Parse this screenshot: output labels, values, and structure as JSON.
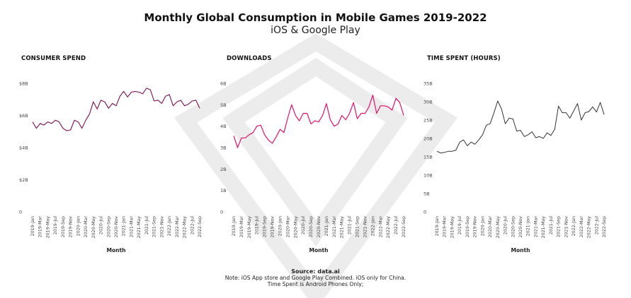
{
  "title": "Monthly Global Consumption in Mobile Games 2019-2022",
  "subtitle": "iOS & Google Play",
  "footer": {
    "source": "Source: data.ai",
    "note1": "Note: iOS App store and Google Play Combined. iOS only for China.",
    "note2": "Time Spent is Android Phones Only;"
  },
  "colors": {
    "consumer_spend": "#7a1050",
    "downloads": "#e0116e",
    "time_spent": "#333333",
    "axis_text": "#444444"
  },
  "chart_data": [
    {
      "type": "line",
      "title": "CONSUMER SPEND",
      "xlabel": "Month",
      "ylabel": "",
      "ylim": [
        0,
        8
      ],
      "yticks": [
        0,
        2,
        4,
        6,
        8
      ],
      "ytick_labels": [
        "0",
        "$2B",
        "$4B",
        "$6B",
        "$8B"
      ],
      "xtick_labels": [
        "2019-Jan",
        "2019-Mar",
        "2019-May",
        "2019-Jul",
        "2019-Sep",
        "2019-Nov",
        "2020-Jan",
        "2020-Mar",
        "2020-May",
        "2020-Jul",
        "2020-Sep",
        "2020-Nov",
        "2021-Jan",
        "2021-Mar",
        "2021-May",
        "2021-Jul",
        "2021-Sep",
        "2021-Nov",
        "2022-Jan",
        "2022-Mar",
        "2022-May",
        "2022-Jul",
        "2022-Sep"
      ],
      "x": [
        "2019-Jan",
        "2019-Feb",
        "2019-Mar",
        "2019-Apr",
        "2019-May",
        "2019-Jun",
        "2019-Jul",
        "2019-Aug",
        "2019-Sep",
        "2019-Oct",
        "2019-Nov",
        "2019-Dec",
        "2020-Jan",
        "2020-Feb",
        "2020-Mar",
        "2020-Apr",
        "2020-May",
        "2020-Jun",
        "2020-Jul",
        "2020-Aug",
        "2020-Sep",
        "2020-Oct",
        "2020-Nov",
        "2020-Dec",
        "2021-Jan",
        "2021-Feb",
        "2021-Mar",
        "2021-Apr",
        "2021-May",
        "2021-Jun",
        "2021-Jul",
        "2021-Aug",
        "2021-Sep",
        "2021-Oct",
        "2021-Nov",
        "2021-Dec",
        "2022-Jan",
        "2022-Feb",
        "2022-Mar",
        "2022-Apr",
        "2022-May",
        "2022-Jun",
        "2022-Jul",
        "2022-Aug",
        "2022-Sep"
      ],
      "values": [
        5.6,
        5.2,
        5.5,
        5.4,
        5.6,
        5.5,
        5.7,
        5.6,
        5.2,
        5.05,
        5.1,
        5.7,
        5.6,
        5.2,
        5.7,
        6.1,
        6.85,
        6.4,
        6.95,
        6.85,
        6.45,
        6.75,
        6.6,
        7.2,
        7.5,
        7.15,
        7.45,
        7.5,
        7.45,
        7.35,
        7.7,
        7.6,
        6.9,
        6.95,
        6.75,
        7.2,
        7.3,
        6.6,
        6.85,
        6.95,
        6.6,
        6.7,
        6.9,
        6.95,
        6.45
      ]
    },
    {
      "type": "line",
      "title": "DOWNLOADS",
      "xlabel": "Month",
      "ylabel": "",
      "ylim": [
        0,
        6
      ],
      "yticks": [
        0,
        1,
        2,
        3,
        4,
        5,
        6
      ],
      "ytick_labels": [
        "0",
        "1B",
        "2B",
        "3B",
        "4B",
        "5B",
        "6B"
      ],
      "xtick_labels": [
        "2019-Jan",
        "2019-Mar",
        "2019-May",
        "2019-Jul",
        "2019-Sep",
        "2019-Nov",
        "2020-Jan",
        "2020-Mar",
        "2020-May",
        "2020-Jul",
        "2020-Sep",
        "2020-Nov",
        "2021-Jan",
        "2021-Mar",
        "2021-May",
        "2021-Jul",
        "2021-Sep",
        "2021-Nov",
        "2022-Jan",
        "2022-Mar",
        "2022-May",
        "2022-Jul",
        "2022-Sep"
      ],
      "x": [
        "2019-Jan",
        "2019-Feb",
        "2019-Mar",
        "2019-Apr",
        "2019-May",
        "2019-Jun",
        "2019-Jul",
        "2019-Aug",
        "2019-Sep",
        "2019-Oct",
        "2019-Nov",
        "2019-Dec",
        "2020-Jan",
        "2020-Feb",
        "2020-Mar",
        "2020-Apr",
        "2020-May",
        "2020-Jun",
        "2020-Jul",
        "2020-Aug",
        "2020-Sep",
        "2020-Oct",
        "2020-Nov",
        "2020-Dec",
        "2021-Jan",
        "2021-Feb",
        "2021-Mar",
        "2021-Apr",
        "2021-May",
        "2021-Jun",
        "2021-Jul",
        "2021-Aug",
        "2021-Sep",
        "2021-Oct",
        "2021-Nov",
        "2021-Dec",
        "2022-Jan",
        "2022-Feb",
        "2022-Mar",
        "2022-Apr",
        "2022-May",
        "2022-Jun",
        "2022-Jul",
        "2022-Aug",
        "2022-Sep"
      ],
      "values": [
        3.55,
        3.0,
        3.45,
        3.45,
        3.6,
        3.7,
        4.0,
        4.05,
        3.6,
        3.35,
        3.2,
        3.5,
        3.85,
        3.7,
        4.4,
        5.0,
        4.5,
        4.25,
        4.6,
        4.6,
        4.1,
        4.25,
        4.2,
        4.5,
        5.05,
        4.3,
        4.0,
        4.1,
        4.5,
        4.3,
        4.6,
        5.1,
        4.35,
        4.6,
        4.6,
        4.9,
        5.45,
        4.6,
        4.95,
        4.95,
        4.9,
        4.75,
        5.3,
        5.1,
        4.5
      ]
    },
    {
      "type": "line",
      "title": "TIME SPENT (HOURS)",
      "xlabel": "Month",
      "ylabel": "",
      "ylim": [
        0,
        35
      ],
      "yticks": [
        0,
        5,
        10,
        15,
        20,
        25,
        30,
        35
      ],
      "ytick_labels": [
        "0",
        "5B",
        "10B",
        "15B",
        "20B",
        "25B",
        "30B",
        "35B"
      ],
      "xtick_labels": [
        "2019-Jan",
        "2019-Mar",
        "2019-May",
        "2019-Jul",
        "2019-Sep",
        "2019-Nov",
        "2020-Jan",
        "2020-Mar",
        "2020-May",
        "2020-Jul",
        "2020-Sep",
        "2020-Nov",
        "2021-Jan",
        "2021-Mar",
        "2021-May",
        "2021-Jul",
        "2021-Sep",
        "2021-Nov",
        "2022-Jan",
        "2022-Mar",
        "2022-May",
        "2022-Jul",
        "2022-Sep"
      ],
      "x": [
        "2019-Jan",
        "2019-Feb",
        "2019-Mar",
        "2019-Apr",
        "2019-May",
        "2019-Jun",
        "2019-Jul",
        "2019-Aug",
        "2019-Sep",
        "2019-Oct",
        "2019-Nov",
        "2019-Dec",
        "2020-Jan",
        "2020-Feb",
        "2020-Mar",
        "2020-Apr",
        "2020-May",
        "2020-Jun",
        "2020-Jul",
        "2020-Aug",
        "2020-Sep",
        "2020-Oct",
        "2020-Nov",
        "2020-Dec",
        "2021-Jan",
        "2021-Feb",
        "2021-Mar",
        "2021-Apr",
        "2021-May",
        "2021-Jun",
        "2021-Jul",
        "2021-Aug",
        "2021-Sep",
        "2021-Oct",
        "2021-Nov",
        "2021-Dec",
        "2022-Jan",
        "2022-Feb",
        "2022-Mar",
        "2022-Apr",
        "2022-May",
        "2022-Jun",
        "2022-Jul",
        "2022-Aug",
        "2022-Sep"
      ],
      "values": [
        16.5,
        16.0,
        16.2,
        16.5,
        16.5,
        16.8,
        19.0,
        19.6,
        18.0,
        19.0,
        18.4,
        19.6,
        21.0,
        23.6,
        24.0,
        27.0,
        30.2,
        28.0,
        24.0,
        25.5,
        25.3,
        22.0,
        22.2,
        20.5,
        21.0,
        21.8,
        20.2,
        20.5,
        20.0,
        21.5,
        20.8,
        22.5,
        28.8,
        27.0,
        27.0,
        25.5,
        27.5,
        29.5,
        25.0,
        27.0,
        27.3,
        28.6,
        27.2,
        29.8,
        26.5
      ]
    }
  ]
}
